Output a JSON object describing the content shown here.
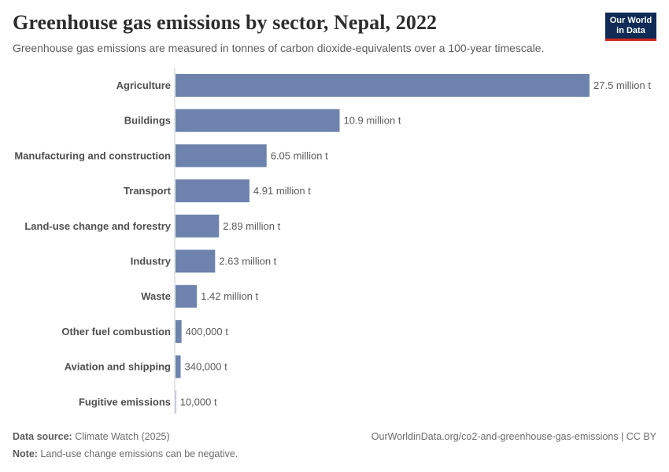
{
  "header": {
    "title": "Greenhouse gas emissions by sector, Nepal, 2022",
    "subtitle": "Greenhouse gas emissions are measured in tonnes of carbon dioxide-equivalents over a 100-year timescale.",
    "logo_line1": "Our World",
    "logo_line2": "in Data"
  },
  "footer": {
    "source_label": "Data source:",
    "source_text": "Climate Watch (2025)",
    "url_text": "OurWorldinData.org/co2-and-greenhouse-gas-emissions | CC BY",
    "note_label": "Note:",
    "note_text": "Land-use change emissions can be negative."
  },
  "colors": {
    "bar": "#6d83ad",
    "axis": "#cccccc",
    "category_text": "#4f4f4f",
    "value_text": "#5b5b5b",
    "logo_bg": "#0f2b56",
    "logo_accent": "#ce261e"
  },
  "chart_data": {
    "type": "bar",
    "orientation": "horizontal",
    "categories": [
      "Agriculture",
      "Buildings",
      "Manufacturing and construction",
      "Transport",
      "Land-use change and forestry",
      "Industry",
      "Waste",
      "Other fuel combustion",
      "Aviation and shipping",
      "Fugitive emissions"
    ],
    "values": [
      27500000,
      10900000,
      6050000,
      4910000,
      2890000,
      2630000,
      1420000,
      400000,
      340000,
      10000
    ],
    "value_labels": [
      "27.5 million t",
      "10.9 million t",
      "6.05 million t",
      "4.91 million t",
      "2.89 million t",
      "2.63 million t",
      "1.42 million t",
      "400,000 t",
      "340,000 t",
      "10,000 t"
    ],
    "unit": "t",
    "xlim": [
      0,
      27500000
    ],
    "grid": false,
    "legend": "none"
  }
}
